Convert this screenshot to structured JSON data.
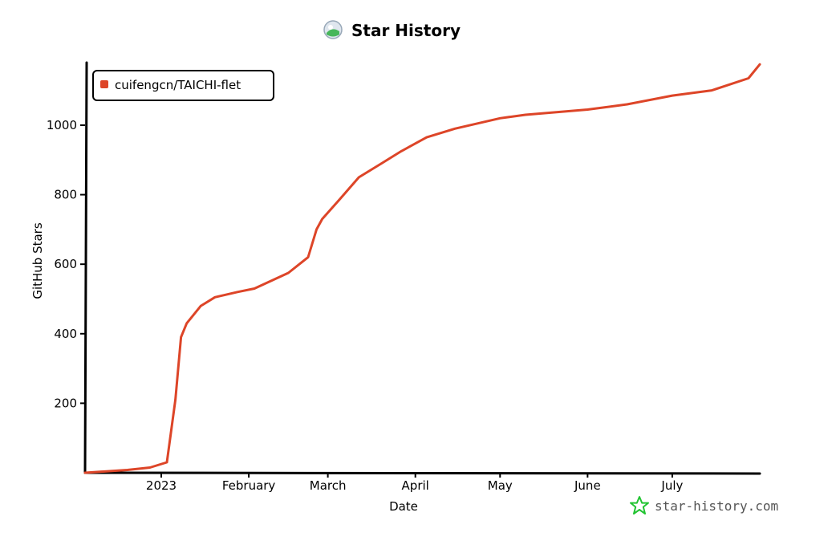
{
  "chart_data": {
    "type": "line",
    "title": "Star History",
    "xlabel": "Date",
    "ylabel": "GitHub Stars",
    "x_tick_labels": [
      "2023",
      "February",
      "March",
      "April",
      "May",
      "June",
      "July"
    ],
    "x_tick_dates": [
      "2023-01-01",
      "2023-02-01",
      "2023-03-01",
      "2023-04-01",
      "2023-05-01",
      "2023-06-01",
      "2023-07-01"
    ],
    "y_ticks": [
      200,
      400,
      600,
      800,
      1000
    ],
    "xlim": [
      "2022-12-05",
      "2023-08-01"
    ],
    "ylim": [
      0,
      1180
    ],
    "legend_position": "top-left",
    "grid": false,
    "series": [
      {
        "name": "cuifengcn/TAICHI-flet",
        "color": "#dd4528",
        "x": [
          "2022-12-05",
          "2022-12-20",
          "2022-12-28",
          "2023-01-03",
          "2023-01-06",
          "2023-01-08",
          "2023-01-10",
          "2023-01-15",
          "2023-01-20",
          "2023-01-28",
          "2023-02-03",
          "2023-02-15",
          "2023-02-22",
          "2023-02-25",
          "2023-02-27",
          "2023-03-05",
          "2023-03-12",
          "2023-03-20",
          "2023-03-27",
          "2023-04-05",
          "2023-04-15",
          "2023-05-01",
          "2023-05-10",
          "2023-06-01",
          "2023-06-15",
          "2023-07-01",
          "2023-07-15",
          "2023-07-28",
          "2023-08-01"
        ],
        "y": [
          0,
          8,
          15,
          30,
          210,
          390,
          430,
          480,
          505,
          520,
          530,
          575,
          620,
          700,
          730,
          785,
          850,
          890,
          925,
          965,
          990,
          1020,
          1030,
          1045,
          1060,
          1085,
          1100,
          1135,
          1175
        ]
      }
    ]
  },
  "watermark": {
    "text": "star-history.com",
    "icon": "star-icon"
  },
  "title_icon": "star-history-logo-icon",
  "colors": {
    "series": "#dd4528",
    "axis": "#000000",
    "watermark_icon": "#22c432"
  }
}
